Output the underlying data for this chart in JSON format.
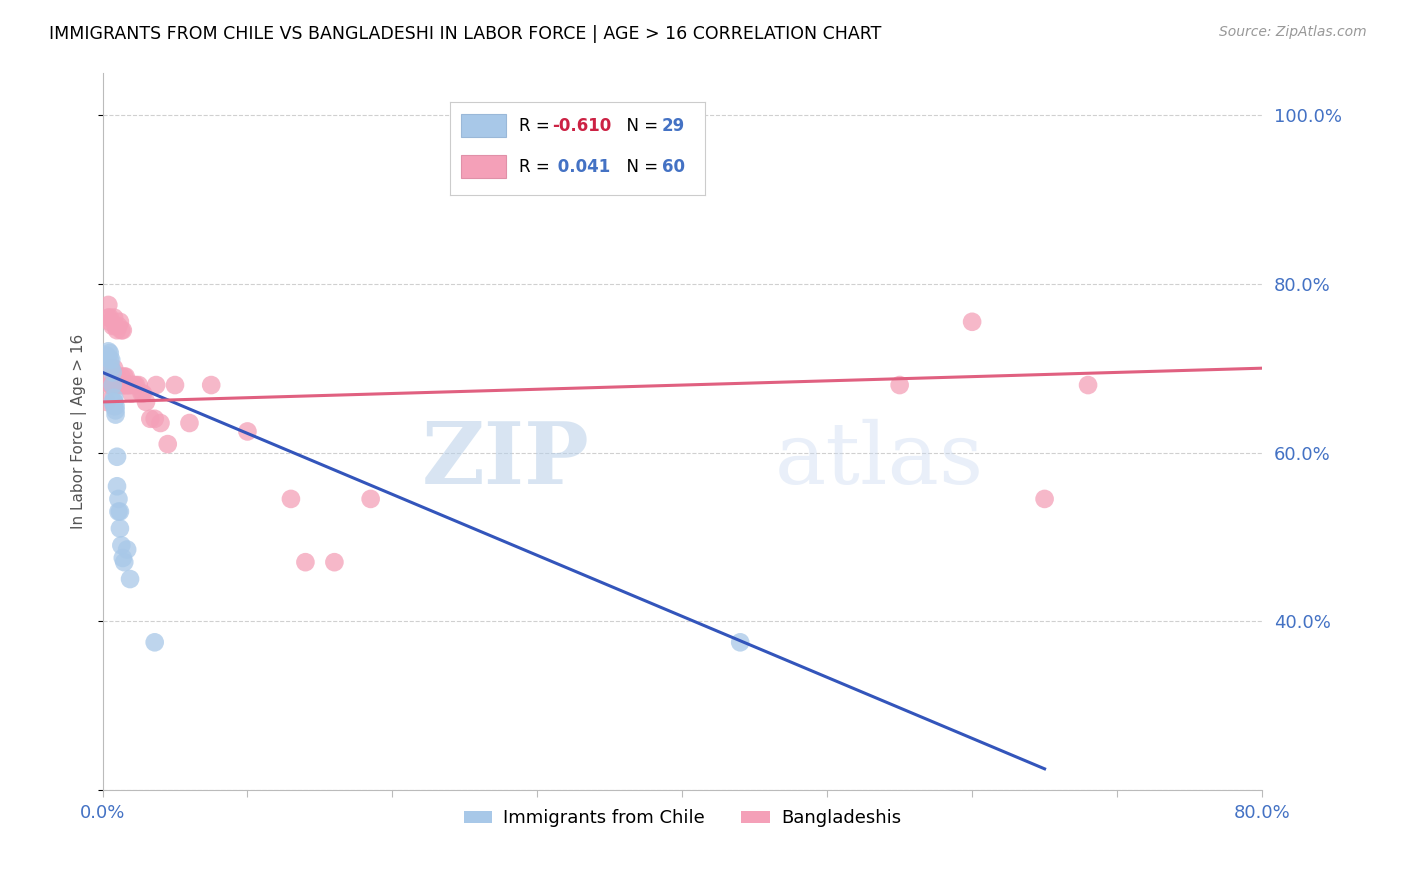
{
  "title": "IMMIGRANTS FROM CHILE VS BANGLADESHI IN LABOR FORCE | AGE > 16 CORRELATION CHART",
  "source": "Source: ZipAtlas.com",
  "ylabel": "In Labor Force | Age > 16",
  "xlim": [
    0.0,
    0.8
  ],
  "ylim": [
    0.2,
    1.05
  ],
  "xticks": [
    0.0,
    0.1,
    0.2,
    0.3,
    0.4,
    0.5,
    0.6,
    0.7,
    0.8
  ],
  "xticklabels": [
    "0.0%",
    "",
    "",
    "",
    "",
    "",
    "",
    "",
    "80.0%"
  ],
  "yticks": [
    0.2,
    0.4,
    0.6,
    0.8,
    1.0
  ],
  "yticklabels": [
    "",
    "40.0%",
    "60.0%",
    "80.0%",
    "100.0%"
  ],
  "chile_color": "#a8c8e8",
  "bangladesh_color": "#f4a0b8",
  "chile_line_color": "#3355bb",
  "bangladesh_line_color": "#e06080",
  "watermark_zip": "ZIP",
  "watermark_atlas": "atlas",
  "chile_points_x": [
    0.003,
    0.004,
    0.005,
    0.005,
    0.006,
    0.006,
    0.007,
    0.007,
    0.007,
    0.008,
    0.008,
    0.008,
    0.008,
    0.009,
    0.009,
    0.009,
    0.01,
    0.01,
    0.011,
    0.011,
    0.012,
    0.012,
    0.013,
    0.014,
    0.015,
    0.017,
    0.019,
    0.036,
    0.44
  ],
  "chile_points_y": [
    0.715,
    0.72,
    0.71,
    0.718,
    0.7,
    0.71,
    0.695,
    0.68,
    0.66,
    0.66,
    0.655,
    0.665,
    0.66,
    0.65,
    0.655,
    0.645,
    0.595,
    0.56,
    0.53,
    0.545,
    0.51,
    0.53,
    0.49,
    0.475,
    0.47,
    0.485,
    0.45,
    0.375,
    0.375
  ],
  "bangladesh_points_x": [
    0.003,
    0.004,
    0.004,
    0.005,
    0.005,
    0.005,
    0.006,
    0.006,
    0.007,
    0.007,
    0.007,
    0.008,
    0.008,
    0.008,
    0.009,
    0.009,
    0.01,
    0.01,
    0.01,
    0.011,
    0.011,
    0.012,
    0.012,
    0.013,
    0.013,
    0.013,
    0.014,
    0.014,
    0.015,
    0.015,
    0.016,
    0.016,
    0.017,
    0.018,
    0.019,
    0.02,
    0.021,
    0.022,
    0.023,
    0.025,
    0.027,
    0.028,
    0.03,
    0.033,
    0.036,
    0.037,
    0.04,
    0.045,
    0.05,
    0.06,
    0.075,
    0.1,
    0.13,
    0.14,
    0.16,
    0.185,
    0.55,
    0.65,
    0.68,
    0.6
  ],
  "bangladesh_points_y": [
    0.66,
    0.76,
    0.775,
    0.68,
    0.755,
    0.76,
    0.68,
    0.7,
    0.68,
    0.69,
    0.75,
    0.68,
    0.7,
    0.76,
    0.68,
    0.75,
    0.68,
    0.69,
    0.745,
    0.68,
    0.75,
    0.68,
    0.755,
    0.68,
    0.69,
    0.745,
    0.68,
    0.745,
    0.68,
    0.69,
    0.68,
    0.69,
    0.68,
    0.68,
    0.68,
    0.67,
    0.68,
    0.68,
    0.68,
    0.68,
    0.67,
    0.67,
    0.66,
    0.64,
    0.64,
    0.68,
    0.635,
    0.61,
    0.68,
    0.635,
    0.68,
    0.625,
    0.545,
    0.47,
    0.47,
    0.545,
    0.68,
    0.545,
    0.68,
    0.755
  ],
  "chile_line_x0": 0.0,
  "chile_line_y0": 0.695,
  "chile_line_x1": 0.65,
  "chile_line_y1": 0.225,
  "bang_line_x0": 0.0,
  "bang_line_y0": 0.66,
  "bang_line_x1": 0.8,
  "bang_line_y1": 0.7
}
